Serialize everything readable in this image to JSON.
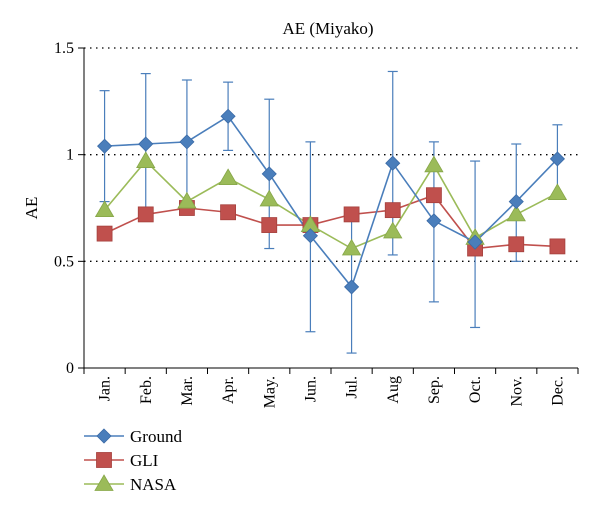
{
  "chart_data": {
    "type": "line",
    "title": "AE (Miyako)",
    "xlabel": "",
    "ylabel": "AE",
    "ylim": [
      0,
      1.5
    ],
    "yticks": [
      "0",
      "0.5",
      "1",
      "1.5"
    ],
    "grid": "horizontal dotted",
    "legend_position": "bottom-left",
    "categories": [
      "Jan.",
      "Feb.",
      "Mar.",
      "Apr.",
      "May.",
      "Jun.",
      "Jul.",
      "Aug",
      "Sep.",
      "Oct.",
      "Nov.",
      "Dec."
    ],
    "series": [
      {
        "name": "Ground",
        "color": "#4a7ebb",
        "marker": "diamond",
        "values": [
          1.04,
          1.05,
          1.06,
          1.18,
          0.91,
          0.62,
          0.38,
          0.96,
          0.69,
          0.59,
          0.78,
          0.98
        ],
        "error_low": [
          0.78,
          0.74,
          0.76,
          1.02,
          0.56,
          0.17,
          0.07,
          0.53,
          0.31,
          0.19,
          0.5,
          0.82
        ],
        "error_high": [
          1.3,
          1.38,
          1.35,
          1.34,
          1.26,
          1.06,
          0.69,
          1.39,
          1.06,
          0.97,
          1.05,
          1.14
        ]
      },
      {
        "name": "GLI",
        "color": "#c0504d",
        "marker": "square",
        "values": [
          0.63,
          0.72,
          0.75,
          0.73,
          0.67,
          0.67,
          0.72,
          0.74,
          0.81,
          0.56,
          0.58,
          0.57
        ]
      },
      {
        "name": "NASA",
        "color": "#9bbb59",
        "marker": "triangle",
        "values": [
          0.74,
          0.97,
          0.78,
          0.89,
          0.79,
          0.67,
          0.56,
          0.64,
          0.95,
          0.61,
          0.72,
          0.82
        ]
      }
    ]
  }
}
